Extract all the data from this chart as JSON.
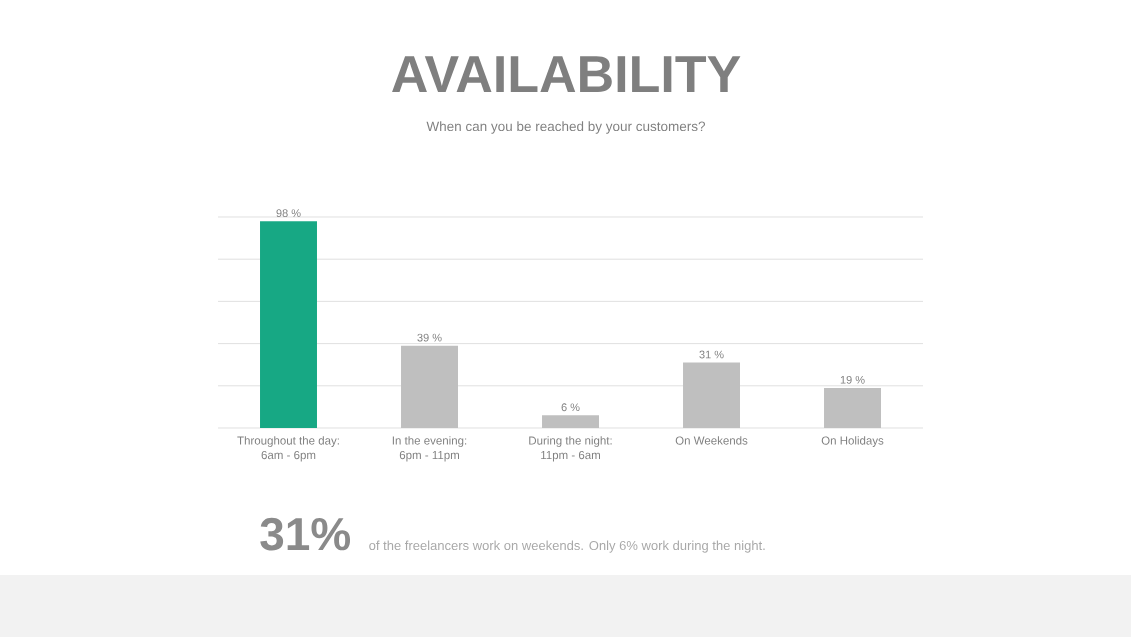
{
  "chart_data": {
    "type": "bar",
    "title": "AVAILABILITY",
    "subtitle": "When can you be reached by your customers?",
    "categories": [
      "Throughout the day:\n6am - 6pm",
      "In the evening:\n6pm - 11pm",
      "During the night:\n11pm - 6am",
      "On Weekends",
      "On Holidays"
    ],
    "values": [
      98,
      39,
      6,
      31,
      19
    ],
    "colors": [
      "#17a884",
      "#bfbfbf",
      "#bfbfbf",
      "#bfbfbf",
      "#bfbfbf"
    ],
    "value_labels": [
      "98 %",
      "39 %",
      "6 %",
      "31 %",
      "19 %"
    ],
    "ylim": [
      0,
      100
    ],
    "yticks": [
      {
        "value": 0,
        "label": null
      },
      {
        "value": 20,
        "label": null
      },
      {
        "value": 40,
        "label": null
      },
      {
        "value": 60,
        "label": null
      },
      {
        "value": 80,
        "label": null
      },
      {
        "value": 100,
        "label": null
      }
    ],
    "grid": "y",
    "tick_labels": "x",
    "annotations": [
      "31%",
      "of the freelancers work on weekends. Only 6% work during the night."
    ]
  }
}
